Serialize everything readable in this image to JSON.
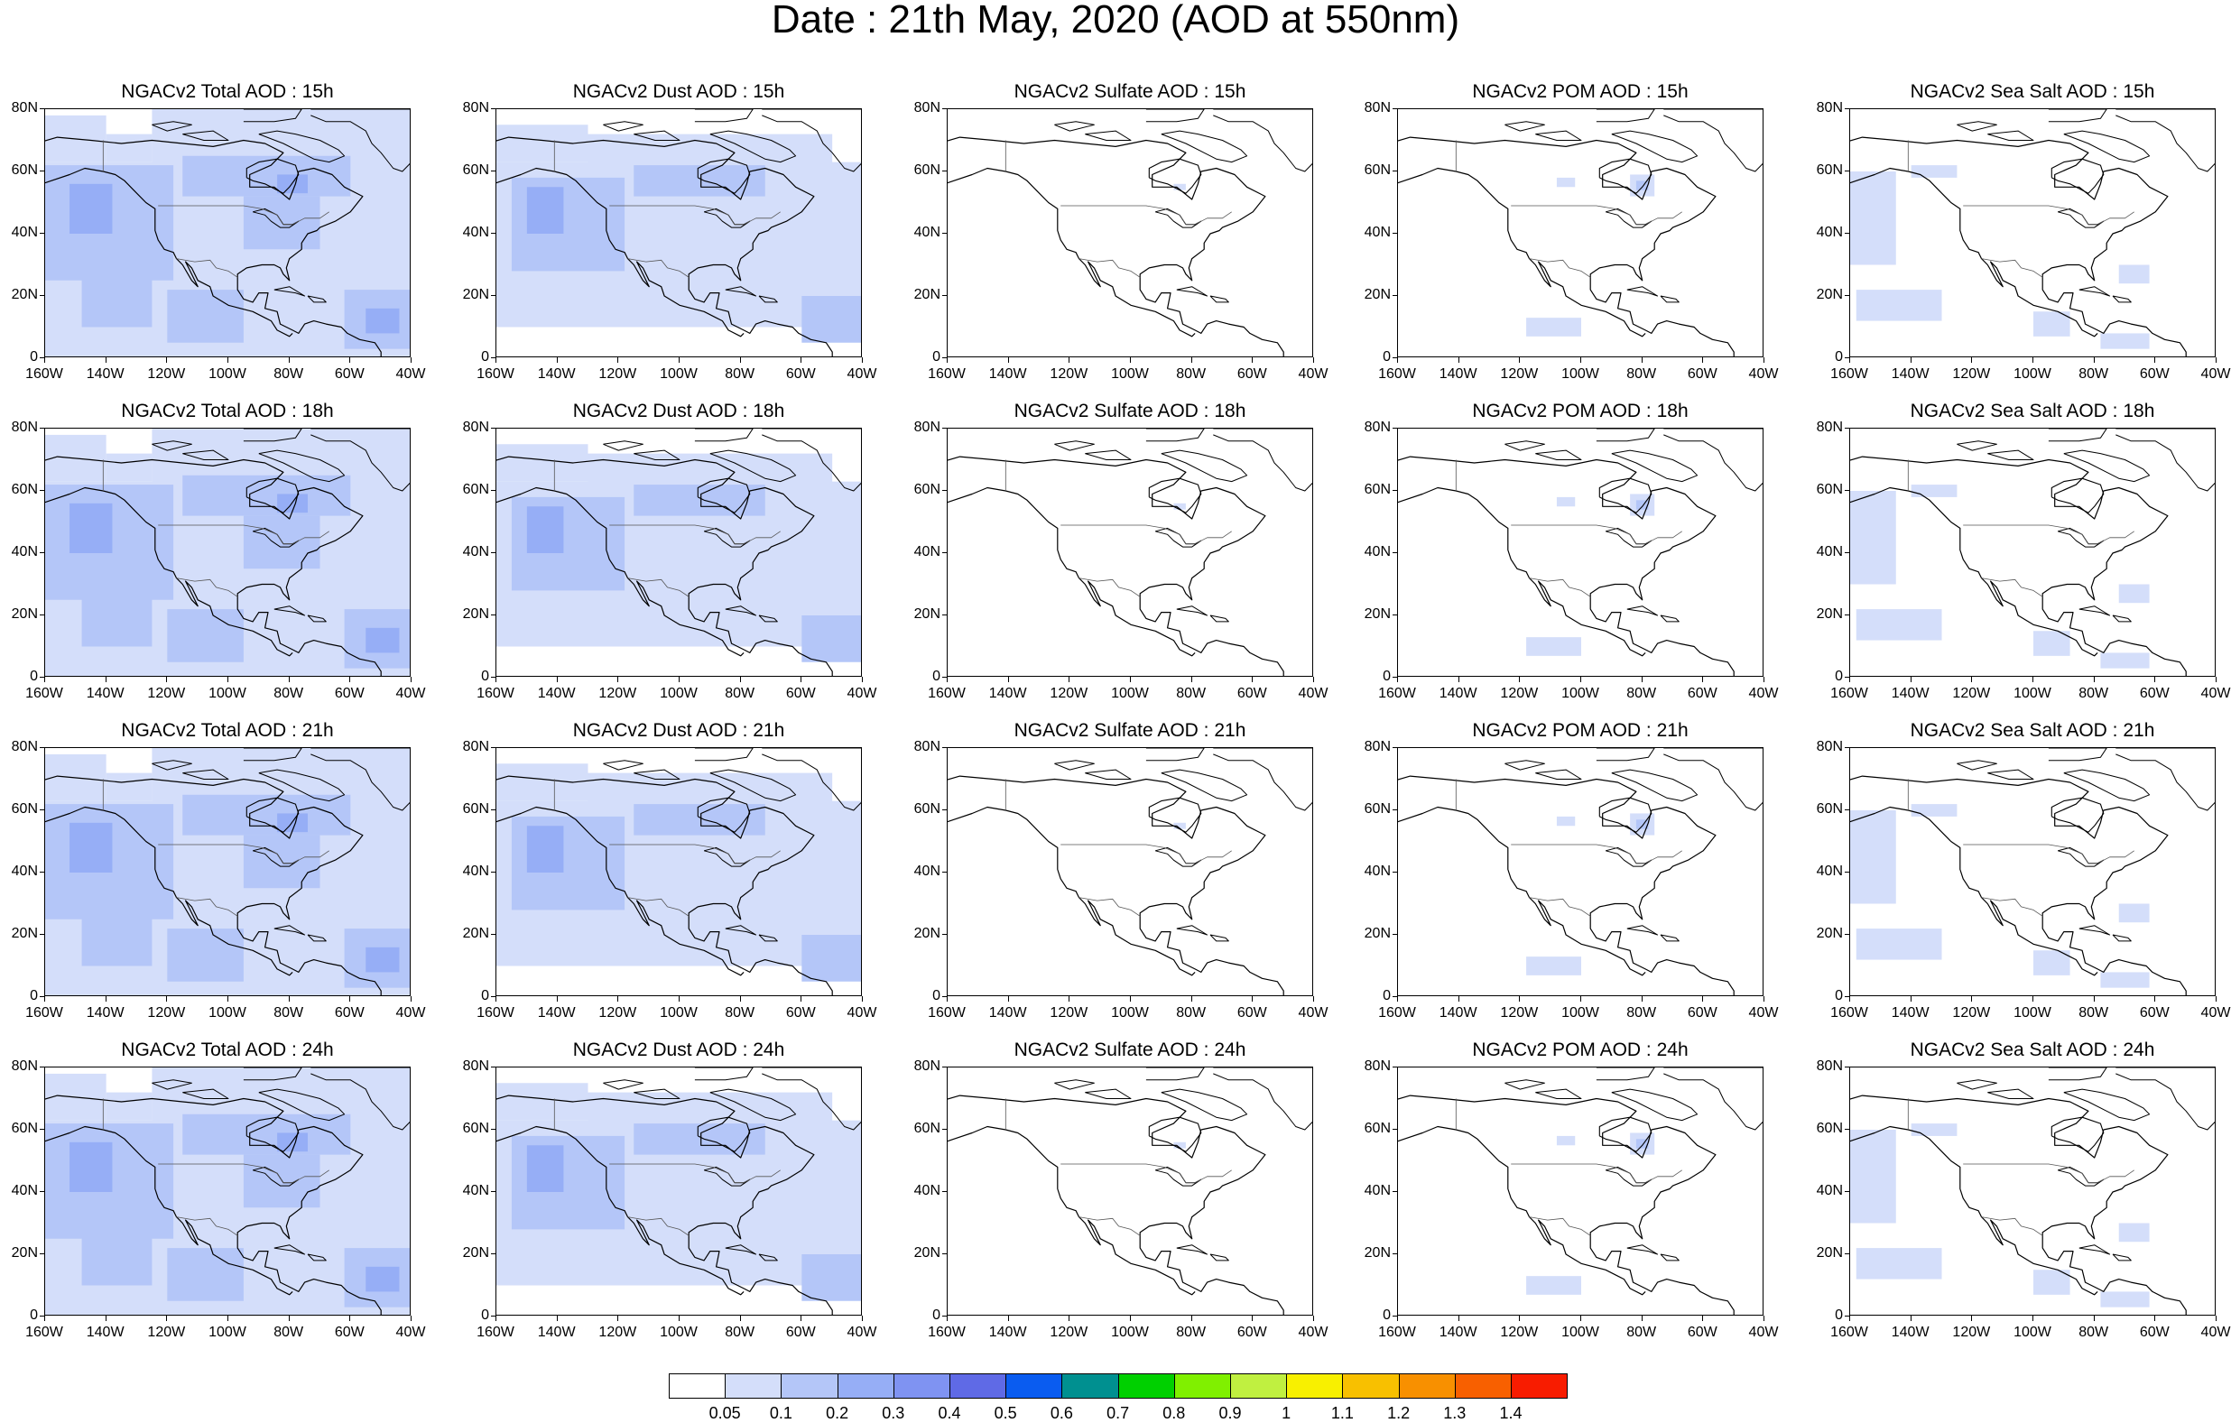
{
  "figure_title": "Date : 21th May, 2020 (AOD at 550nm)",
  "axes": {
    "lat_ticks": [
      "80N",
      "60N",
      "40N",
      "20N",
      "0"
    ],
    "lon_ticks": [
      "160W",
      "140W",
      "120W",
      "100W",
      "80W",
      "60W",
      "40W"
    ],
    "lat_range": [
      0,
      80
    ],
    "lon_range": [
      -160,
      -40
    ]
  },
  "panels": [
    {
      "title": "NGACv2 Total AOD : 15h",
      "species": "total"
    },
    {
      "title": "NGACv2 Dust AOD : 15h",
      "species": "dust"
    },
    {
      "title": "NGACv2 Sulfate AOD : 15h",
      "species": "sulfate"
    },
    {
      "title": "NGACv2 POM AOD : 15h",
      "species": "pom"
    },
    {
      "title": "NGACv2 Sea Salt AOD : 15h",
      "species": "seasalt"
    },
    {
      "title": "NGACv2 Total AOD : 18h",
      "species": "total"
    },
    {
      "title": "NGACv2 Dust AOD : 18h",
      "species": "dust"
    },
    {
      "title": "NGACv2 Sulfate AOD : 18h",
      "species": "sulfate"
    },
    {
      "title": "NGACv2 POM AOD : 18h",
      "species": "pom"
    },
    {
      "title": "NGACv2 Sea Salt AOD : 18h",
      "species": "seasalt"
    },
    {
      "title": "NGACv2 Total AOD : 21h",
      "species": "total"
    },
    {
      "title": "NGACv2 Dust AOD : 21h",
      "species": "dust"
    },
    {
      "title": "NGACv2 Sulfate AOD : 21h",
      "species": "sulfate"
    },
    {
      "title": "NGACv2 POM AOD : 21h",
      "species": "pom"
    },
    {
      "title": "NGACv2 Sea Salt AOD : 21h",
      "species": "seasalt"
    },
    {
      "title": "NGACv2 Total AOD : 24h",
      "species": "total"
    },
    {
      "title": "NGACv2 Dust AOD : 24h",
      "species": "dust"
    },
    {
      "title": "NGACv2 Sulfate AOD : 24h",
      "species": "sulfate"
    },
    {
      "title": "NGACv2 POM AOD : 24h",
      "species": "pom"
    },
    {
      "title": "NGACv2 Sea Salt  AOD : 24h",
      "species": "seasalt"
    }
  ],
  "colorbar": {
    "labels": [
      "0.05",
      "0.1",
      "0.2",
      "0.3",
      "0.4",
      "0.5",
      "0.6",
      "0.7",
      "0.8",
      "0.9",
      "1",
      "1.1",
      "1.2",
      "1.3",
      "1.4"
    ],
    "colors": [
      "#ffffff",
      "#d4defa",
      "#b4c6f8",
      "#96aef6",
      "#7f93f2",
      "#5f6ae6",
      "#0a5cf0",
      "#009090",
      "#00d000",
      "#80f000",
      "#c0f040",
      "#f8f000",
      "#f8c000",
      "#f89000",
      "#f86000",
      "#f81c00"
    ]
  },
  "field_colors": {
    "light": "#d4defa",
    "medium": "#b4c6f8",
    "strong": "#96aef6",
    "peak": "#7f93f2",
    "coast": "#000000",
    "border": "#555555"
  }
}
